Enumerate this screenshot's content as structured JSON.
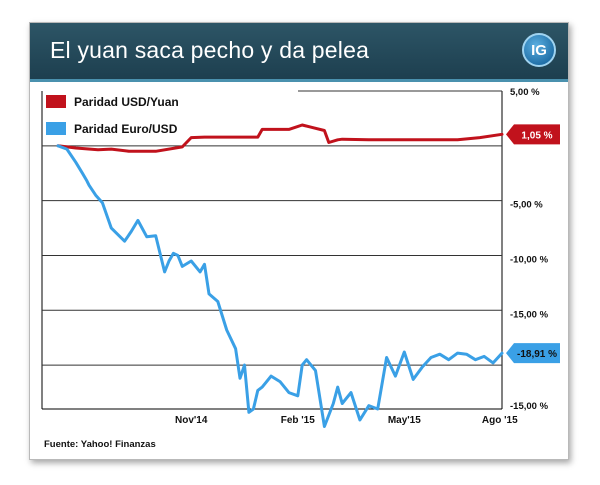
{
  "header": {
    "title": "El yuan saca pecho y da pelea",
    "logo_text": "IG"
  },
  "source": "Fuente: Yahoo! Finanzas",
  "colors": {
    "header_bg": "#254a5b",
    "yuan": "#c1121c",
    "euro": "#3aa0e6"
  },
  "chart_data": {
    "type": "line",
    "x_ticks": [
      "Nov'14",
      "Feb '15",
      "May'15",
      "Ago '15"
    ],
    "y_tick_labels": [
      "5,00 %",
      "-5,00 %",
      "-10,00 %",
      "-15,00 %",
      "-15,00 %"
    ],
    "ylim": [
      -24,
      5
    ],
    "grid": true,
    "legend_position": "top-left",
    "series": [
      {
        "name": "Paridad USD/Yuan",
        "color": "#c1121c",
        "end_label": "1,05 %",
        "x": [
          0,
          0.04,
          0.09,
          0.12,
          0.16,
          0.22,
          0.28,
          0.3,
          0.33,
          0.34,
          0.4,
          0.45,
          0.46,
          0.52,
          0.55,
          0.57,
          0.6,
          0.61,
          0.63,
          0.64,
          0.7,
          0.8,
          0.9,
          0.95,
          1.0
        ],
        "values": [
          0.0,
          -0.2,
          -0.35,
          -0.3,
          -0.5,
          -0.5,
          -0.1,
          0.75,
          0.8,
          0.8,
          0.8,
          0.8,
          1.5,
          1.5,
          1.9,
          1.7,
          1.4,
          0.3,
          0.55,
          0.6,
          0.55,
          0.55,
          0.55,
          0.75,
          1.05
        ]
      },
      {
        "name": "Paridad Euro/USD",
        "color": "#3aa0e6",
        "end_label": "-18,91 %",
        "x": [
          0,
          0.02,
          0.04,
          0.055,
          0.065,
          0.07,
          0.085,
          0.1,
          0.12,
          0.15,
          0.165,
          0.18,
          0.2,
          0.22,
          0.24,
          0.25,
          0.26,
          0.27,
          0.28,
          0.3,
          0.32,
          0.33,
          0.34,
          0.36,
          0.38,
          0.4,
          0.41,
          0.42,
          0.43,
          0.44,
          0.45,
          0.46,
          0.48,
          0.5,
          0.52,
          0.54,
          0.55,
          0.56,
          0.58,
          0.6,
          0.62,
          0.63,
          0.64,
          0.66,
          0.68,
          0.7,
          0.72,
          0.74,
          0.76,
          0.78,
          0.8,
          0.82,
          0.84,
          0.86,
          0.88,
          0.9,
          0.92,
          0.94,
          0.96,
          0.98,
          1.0
        ],
        "values": [
          0.0,
          -0.3,
          -1.5,
          -2.5,
          -3.2,
          -3.6,
          -4.5,
          -5.2,
          -7.5,
          -8.7,
          -7.8,
          -6.8,
          -8.3,
          -8.2,
          -11.5,
          -10.5,
          -9.8,
          -10.0,
          -11.0,
          -10.5,
          -11.5,
          -10.8,
          -13.5,
          -14.2,
          -16.8,
          -18.5,
          -21.2,
          -20.0,
          -24.3,
          -24.0,
          -22.3,
          -22.0,
          -21.0,
          -21.5,
          -22.5,
          -22.8,
          -20.0,
          -19.5,
          -20.5,
          -25.6,
          -23.5,
          -22.0,
          -23.5,
          -22.5,
          -25.0,
          -23.7,
          -24.0,
          -19.3,
          -21.0,
          -18.8,
          -21.3,
          -20.2,
          -19.3,
          -19.0,
          -19.5,
          -18.9,
          -19.0,
          -19.5,
          -19.2,
          -19.8,
          -18.91
        ]
      }
    ]
  }
}
